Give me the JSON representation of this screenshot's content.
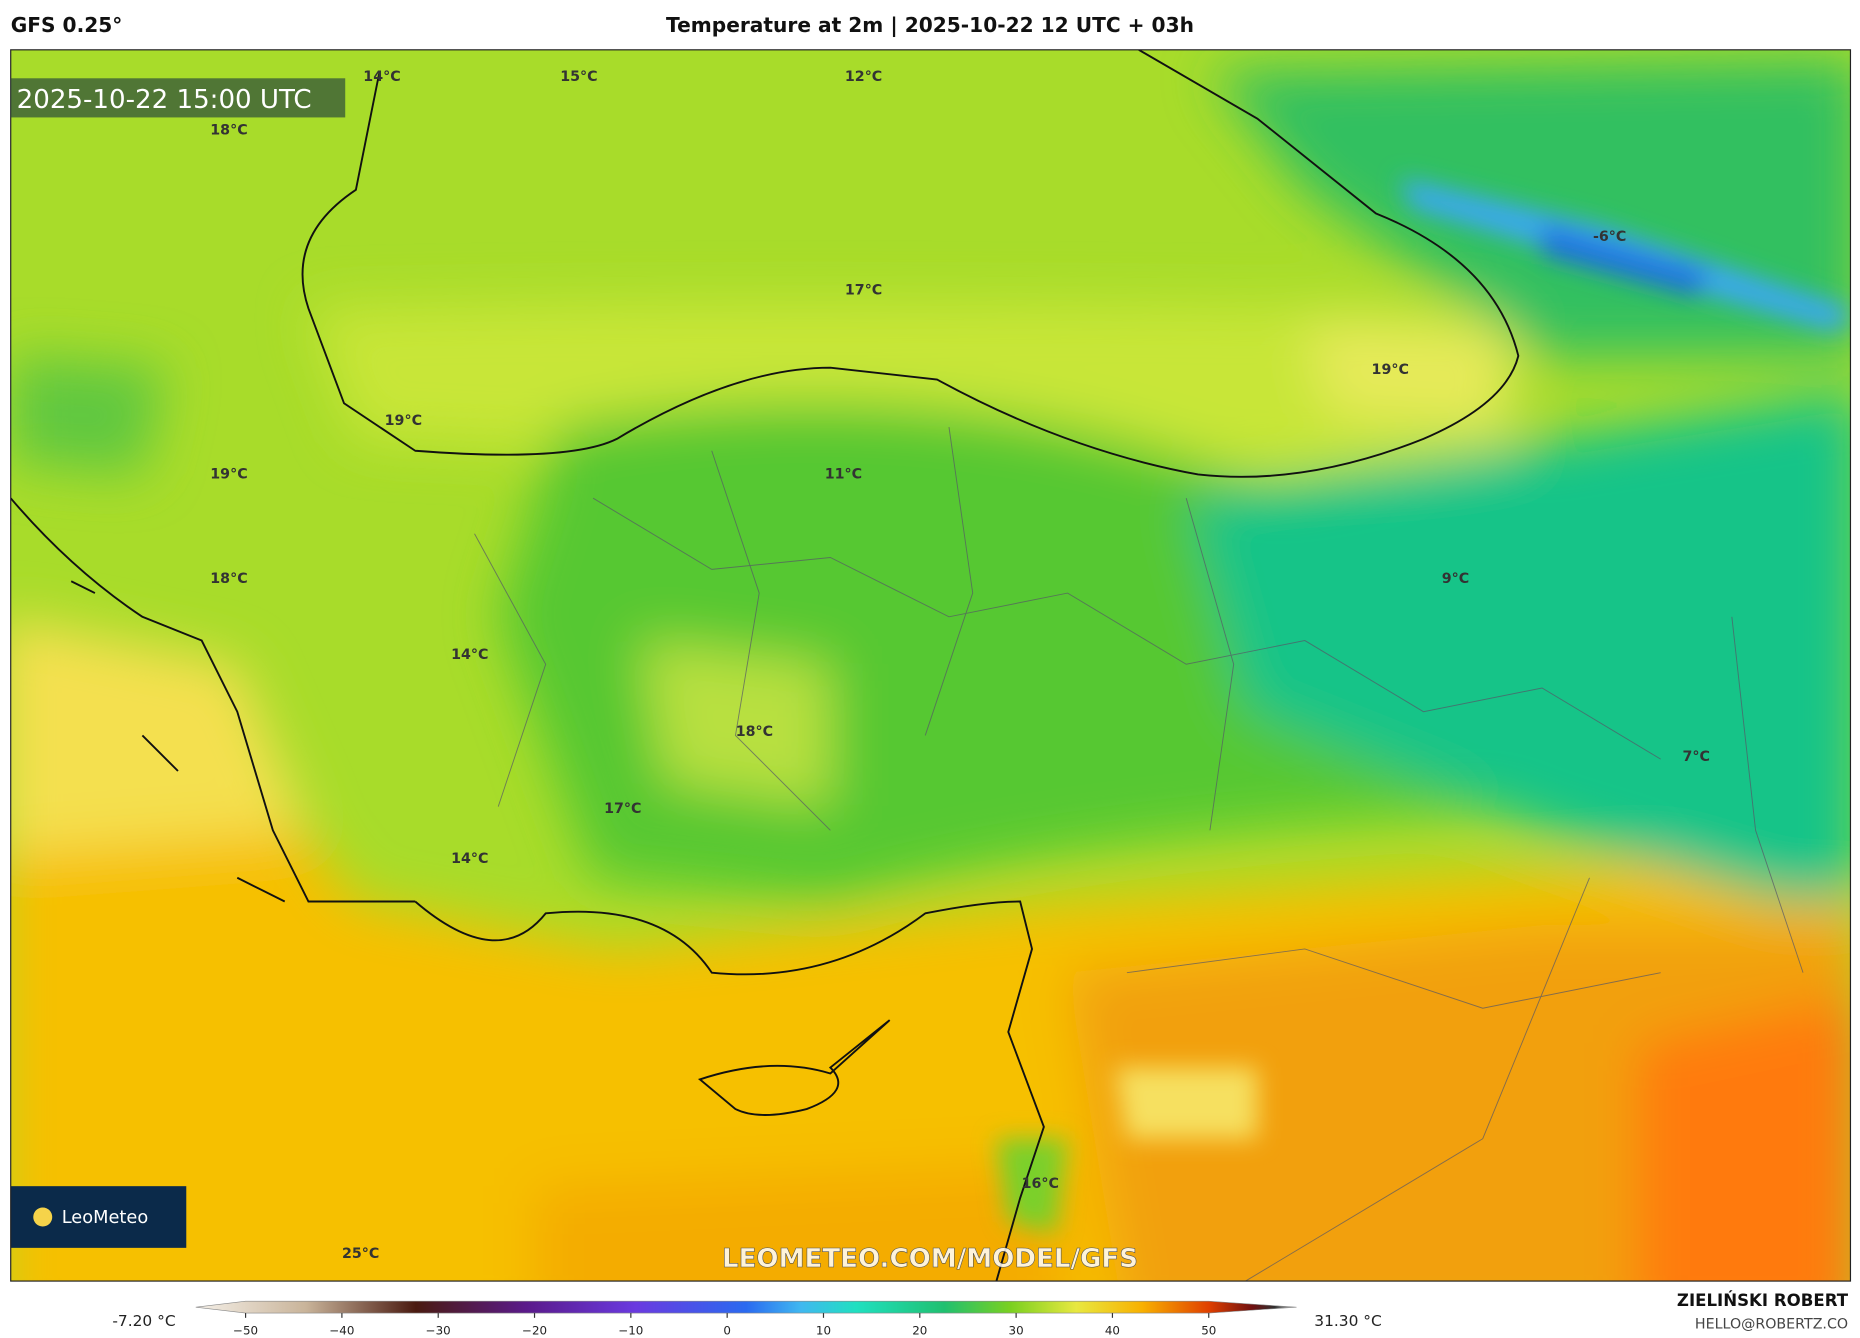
{
  "header": {
    "model": "GFS 0.25°",
    "title": "Temperature at 2m | 2025-10-22 12 UTC + 03h"
  },
  "map": {
    "timestamp": "2025-10-22 15:00 UTC",
    "watermark": "LEOMETEO.COM/MODEL/GFS",
    "logo": "LeoMeteo",
    "labels": [
      "14°C",
      "15°C",
      "12°C",
      "18°C",
      "17°C",
      "-6°C",
      "19°C",
      "19°C",
      "19°C",
      "11°C",
      "18°C",
      "9°C",
      "14°C",
      "18°C",
      "7°C",
      "17°C",
      "14°C",
      "16°C",
      "25°C"
    ]
  },
  "colorbar": {
    "min_label": "-7.20 °C",
    "max_label": "31.30 °C",
    "ticks": [
      "−50",
      "−40",
      "−30",
      "−20",
      "−10",
      "0",
      "10",
      "20",
      "30",
      "40",
      "50"
    ]
  },
  "footer": {
    "author": "ZIELIŃSKI ROBERT",
    "email": "HELLO@ROBERTZ.CO"
  }
}
